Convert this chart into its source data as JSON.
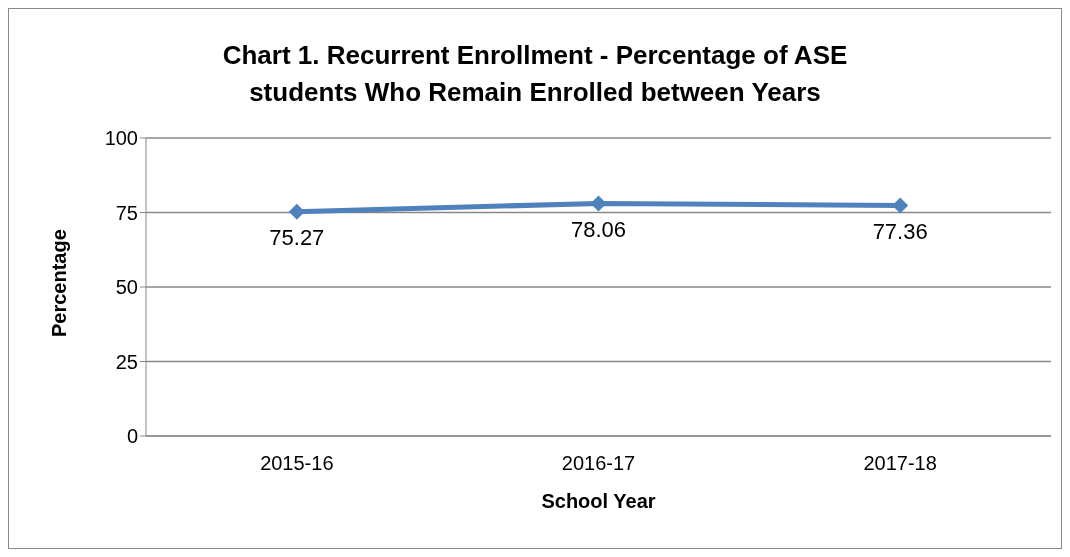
{
  "chart_data": {
    "type": "line",
    "title": "Chart 1. Recurrent Enrollment - Percentage of ASE students Who Remain Enrolled between Years",
    "xlabel": "School Year",
    "ylabel": "Percentage",
    "categories": [
      "2015-16",
      "2016-17",
      "2017-18"
    ],
    "series": [
      {
        "color": "#4f81bd",
        "values": [
          75.27,
          78.06,
          77.36
        ]
      }
    ],
    "ylim": [
      0,
      100
    ],
    "yticks": [
      0,
      25,
      50,
      75,
      100
    ],
    "grid": "y",
    "marker": "diamond",
    "line_style": "solid",
    "data_labels": true
  }
}
